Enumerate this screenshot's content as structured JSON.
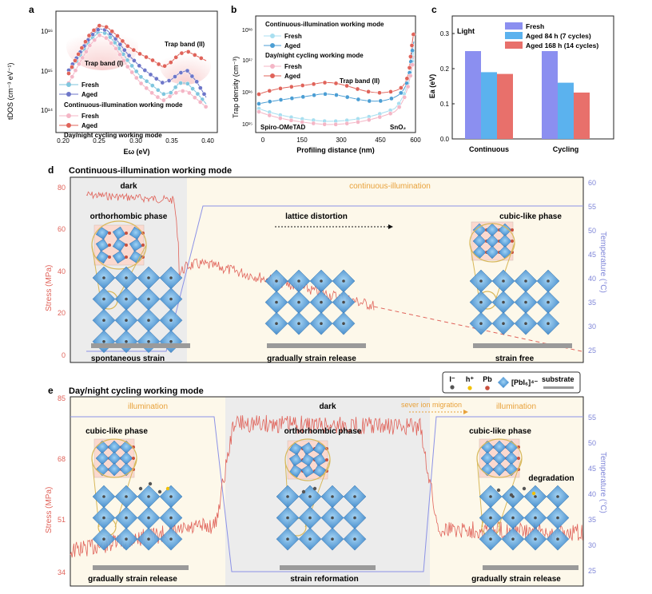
{
  "panel_labels": {
    "a": "a",
    "b": "b",
    "c": "c",
    "d": "d",
    "e": "e"
  },
  "panel_a": {
    "ylabel": "tDOS (cm⁻³ eV⁻¹)",
    "xlabel": "Eω (eV)",
    "xticks": [
      "0.20",
      "0.25",
      "0.30",
      "0.35",
      "0.40"
    ],
    "yticks": [
      "10¹⁶",
      "10¹⁵",
      "10¹⁴"
    ],
    "annot_band1": "Trap band (I)",
    "annot_band2": "Trap band (II)",
    "legend_title_cont": "Continuous-illumination working mode",
    "legend_title_cycle": "Day/night cycling working mode",
    "legend_fresh": "Fresh",
    "legend_aged": "Aged",
    "colors": {
      "cont_fresh": "#7fc6de",
      "cont_aged": "#6d76c9",
      "cyc_fresh": "#f4b6c6",
      "cyc_aged": "#e0635a"
    }
  },
  "panel_b": {
    "ylabel": "Trap density (cm⁻³)",
    "xlabel": "Profiling distance (nm)",
    "xticks": [
      "0",
      "150",
      "300",
      "450",
      "600"
    ],
    "yticks": [
      "10¹⁸",
      "10¹⁷",
      "10¹⁶",
      "10¹⁵"
    ],
    "legend_title_cont": "Continuous-illumination working mode",
    "legend_title_cycle": "Day/night cycling working mode",
    "legend_fresh": "Fresh",
    "legend_aged": "Aged",
    "annot_band": "Trap band (II)",
    "left_layer": "Spiro-OMeTAD",
    "right_layer": "SnO₂"
  },
  "panel_c": {
    "ylabel": "Ea (eV)",
    "inner_label": "Light",
    "yticks": [
      "0.0",
      "0.1",
      "0.2",
      "0.3"
    ],
    "chart_data": {
      "type": "bar",
      "categories": [
        "Continuous",
        "Cycling"
      ],
      "ylabel": "Ea (eV)",
      "ylim": [
        0,
        0.35
      ],
      "series": [
        {
          "name": "Fresh",
          "color": "#8b8ff0",
          "values": [
            0.25,
            0.25
          ]
        },
        {
          "name": "Aged 84 h (7 cycles)",
          "color": "#5bb2ee",
          "values": [
            0.19,
            0.16
          ]
        },
        {
          "name": "Aged 168 h (14 cycles)",
          "color": "#e8706b",
          "values": [
            0.185,
            0.132
          ]
        }
      ]
    }
  },
  "panel_d": {
    "title": "Continuous-illumination working mode",
    "ylabel_left": "Stress (MPa)",
    "ylabel_right": "Temperature (°C)",
    "yticks_left": [
      "80",
      "60",
      "40",
      "20",
      "0"
    ],
    "yticks_right": [
      "60",
      "55",
      "50",
      "45",
      "40",
      "35",
      "30",
      "25"
    ],
    "dark": "dark",
    "illum": "continuous-illumination",
    "phase_left": "orthorhombic phase",
    "phase_right": "cubic-like phase",
    "lattice": "lattice distortion",
    "cap_left": "spontaneous strain",
    "cap_mid": "gradually strain release",
    "cap_right": "strain free"
  },
  "panel_e": {
    "title": "Day/night cycling working mode",
    "ylabel_left": "Stress (MPa)",
    "ylabel_right": "Temperature (°C)",
    "yticks_left": [
      "85",
      "68",
      "51",
      "34"
    ],
    "yticks_right": [
      "55",
      "50",
      "45",
      "40",
      "35",
      "30",
      "25"
    ],
    "illum_left": "illumination",
    "dark": "dark",
    "ion_migration": "sever ion migration",
    "illum_right": "illumination",
    "phase_cubic_left": "cubic-like phase",
    "phase_ortho": "orthorhombic phase",
    "phase_cubic_right": "cubic-like phase",
    "degradation": "degradation",
    "cap_left": "gradually strain release",
    "cap_mid": "strain reformation",
    "cap_right": "gradually strain release",
    "legend_i": "I⁻",
    "legend_h": "h⁺",
    "legend_pb": "Pb",
    "legend_pbi6": "[PbI₆]⁴⁻",
    "legend_sub": "substrate"
  }
}
